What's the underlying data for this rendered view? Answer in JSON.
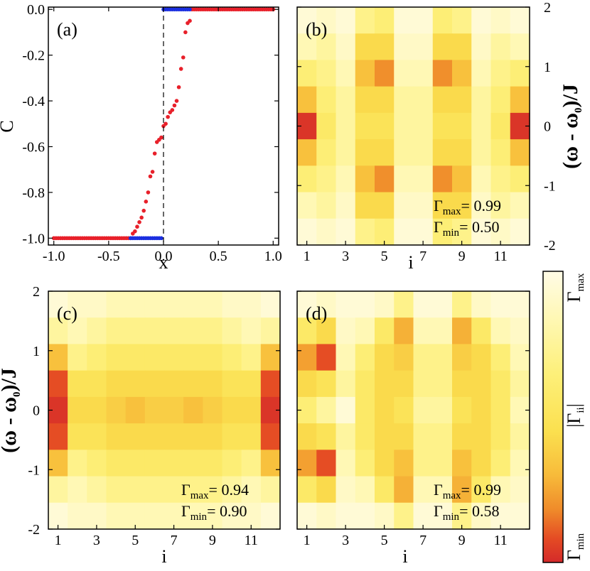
{
  "chart_data": [
    {
      "panel": "(a)",
      "type": "scatter",
      "xlabel": "x",
      "ylabel": "C",
      "xlim": [
        -1.05,
        1.05
      ],
      "ylim": [
        -1.03,
        0.01
      ],
      "x_ticks": [
        -1.0,
        -0.5,
        0.0,
        0.5,
        1.0
      ],
      "x_tick_labels": [
        "-1.0",
        "-0.5",
        "0.0",
        "0.5",
        "1.0"
      ],
      "y_ticks": [
        0.0,
        -0.2,
        -0.4,
        -0.6,
        -0.8,
        -1.0
      ],
      "y_tick_labels": [
        "0.0",
        "-0.2",
        "-0.4",
        "-0.6",
        "-0.8",
        "-1.0"
      ],
      "vline_x": 0.0,
      "series": [
        {
          "color": "#e8202a",
          "points": [
            [
              -1.0,
              -1.0
            ],
            [
              -0.98,
              -1.0
            ],
            [
              -0.96,
              -1.0
            ],
            [
              -0.94,
              -1.0
            ],
            [
              -0.92,
              -1.0
            ],
            [
              -0.9,
              -1.0
            ],
            [
              -0.88,
              -1.0
            ],
            [
              -0.86,
              -1.0
            ],
            [
              -0.84,
              -1.0
            ],
            [
              -0.82,
              -1.0
            ],
            [
              -0.8,
              -1.0
            ],
            [
              -0.78,
              -1.0
            ],
            [
              -0.76,
              -1.0
            ],
            [
              -0.74,
              -1.0
            ],
            [
              -0.72,
              -1.0
            ],
            [
              -0.7,
              -1.0
            ],
            [
              -0.68,
              -1.0
            ],
            [
              -0.66,
              -1.0
            ],
            [
              -0.64,
              -1.0
            ],
            [
              -0.62,
              -1.0
            ],
            [
              -0.6,
              -1.0
            ],
            [
              -0.58,
              -1.0
            ],
            [
              -0.56,
              -1.0
            ],
            [
              -0.54,
              -1.0
            ],
            [
              -0.52,
              -1.0
            ],
            [
              -0.5,
              -1.0
            ],
            [
              -0.48,
              -1.0
            ],
            [
              -0.46,
              -1.0
            ],
            [
              -0.44,
              -1.0
            ],
            [
              -0.42,
              -1.0
            ],
            [
              -0.4,
              -1.0
            ],
            [
              -0.38,
              -1.0
            ],
            [
              -0.36,
              -1.0
            ],
            [
              -0.34,
              -1.0
            ],
            [
              -0.32,
              -1.0
            ],
            [
              -0.3,
              -1.0
            ],
            [
              -0.28,
              -0.98
            ],
            [
              -0.26,
              -0.97
            ],
            [
              -0.24,
              -0.95
            ],
            [
              -0.22,
              -0.93
            ],
            [
              -0.2,
              -0.91
            ],
            [
              -0.18,
              -0.88
            ],
            [
              -0.16,
              -0.84
            ],
            [
              -0.14,
              -0.8
            ],
            [
              -0.12,
              -0.73
            ],
            [
              -0.1,
              -0.71
            ],
            [
              -0.08,
              -0.63
            ],
            [
              -0.06,
              -0.58
            ],
            [
              -0.04,
              -0.57
            ],
            [
              -0.02,
              -0.56
            ],
            [
              0.0,
              -0.51
            ],
            [
              0.02,
              -0.5
            ],
            [
              0.04,
              -0.47
            ],
            [
              0.06,
              -0.45
            ],
            [
              0.08,
              -0.44
            ],
            [
              0.1,
              -0.42
            ],
            [
              0.12,
              -0.4
            ],
            [
              0.14,
              -0.34
            ],
            [
              0.16,
              -0.26
            ],
            [
              0.18,
              -0.21
            ],
            [
              0.2,
              -0.1
            ],
            [
              0.22,
              -0.06
            ],
            [
              0.24,
              -0.05
            ],
            [
              0.26,
              0.0
            ],
            [
              0.28,
              0.0
            ],
            [
              0.3,
              0.0
            ],
            [
              0.32,
              0.0
            ],
            [
              0.34,
              0.0
            ],
            [
              0.36,
              0.0
            ],
            [
              0.38,
              0.0
            ],
            [
              0.4,
              0.0
            ],
            [
              0.42,
              0.0
            ],
            [
              0.44,
              0.0
            ],
            [
              0.46,
              0.0
            ],
            [
              0.48,
              0.0
            ],
            [
              0.5,
              0.0
            ],
            [
              0.52,
              0.0
            ],
            [
              0.54,
              0.0
            ],
            [
              0.56,
              0.0
            ],
            [
              0.58,
              0.0
            ],
            [
              0.6,
              0.0
            ],
            [
              0.62,
              0.0
            ],
            [
              0.64,
              0.0
            ],
            [
              0.66,
              0.0
            ],
            [
              0.68,
              0.0
            ],
            [
              0.7,
              0.0
            ],
            [
              0.72,
              0.0
            ],
            [
              0.74,
              0.0
            ],
            [
              0.76,
              0.0
            ],
            [
              0.78,
              0.0
            ],
            [
              0.8,
              0.0
            ],
            [
              0.82,
              0.0
            ],
            [
              0.84,
              0.0
            ],
            [
              0.86,
              0.0
            ],
            [
              0.88,
              0.0
            ],
            [
              0.9,
              0.0
            ],
            [
              0.92,
              0.0
            ],
            [
              0.94,
              0.0
            ],
            [
              0.96,
              0.0
            ],
            [
              0.98,
              0.0
            ],
            [
              1.0,
              0.0
            ]
          ]
        },
        {
          "color": "#1b2fe0",
          "points": [
            [
              -0.3,
              -1.0
            ],
            [
              -0.28,
              -1.0
            ],
            [
              -0.26,
              -1.0
            ],
            [
              -0.24,
              -1.0
            ],
            [
              -0.22,
              -1.0
            ],
            [
              -0.2,
              -1.0
            ],
            [
              -0.18,
              -1.0
            ],
            [
              -0.16,
              -1.0
            ],
            [
              -0.14,
              -1.0
            ],
            [
              -0.12,
              -1.0
            ],
            [
              -0.1,
              -1.0
            ],
            [
              -0.08,
              -1.0
            ],
            [
              -0.06,
              -1.0
            ],
            [
              -0.04,
              -1.0
            ],
            [
              -0.02,
              -1.0
            ],
            [
              0.0,
              0.0
            ],
            [
              0.02,
              0.0
            ],
            [
              0.04,
              0.0
            ],
            [
              0.06,
              0.0
            ],
            [
              0.08,
              0.0
            ],
            [
              0.1,
              0.0
            ],
            [
              0.12,
              0.0
            ],
            [
              0.14,
              0.0
            ],
            [
              0.16,
              0.0
            ],
            [
              0.18,
              0.0
            ],
            [
              0.2,
              0.0
            ],
            [
              0.22,
              0.0
            ],
            [
              0.24,
              0.0
            ]
          ]
        }
      ]
    },
    {
      "panel": "(b)",
      "type": "heatmap",
      "xlabel": "i",
      "ylabel": "(ω - ω0)/J",
      "x_tick_labels": [
        "1",
        "3",
        "5",
        "7",
        "9",
        "11"
      ],
      "y_tick_labels": [
        "2",
        "1",
        "0",
        "-1",
        "-2"
      ],
      "annotation": {
        "gmax_value": "= 0.99",
        "gmin_value": "= 0.50"
      },
      "columns": 12,
      "rows": 9,
      "z": [
        [
          0.05,
          0.1,
          0.05,
          0.25,
          0.3,
          0.05,
          0.05,
          0.3,
          0.25,
          0.05,
          0.1,
          0.05
        ],
        [
          0.15,
          0.2,
          0.1,
          0.45,
          0.45,
          0.1,
          0.1,
          0.45,
          0.45,
          0.1,
          0.2,
          0.15
        ],
        [
          0.3,
          0.25,
          0.15,
          0.55,
          0.7,
          0.15,
          0.15,
          0.7,
          0.55,
          0.15,
          0.25,
          0.3
        ],
        [
          0.55,
          0.3,
          0.2,
          0.45,
          0.45,
          0.2,
          0.2,
          0.45,
          0.45,
          0.2,
          0.3,
          0.55
        ],
        [
          0.95,
          0.35,
          0.2,
          0.4,
          0.4,
          0.2,
          0.2,
          0.4,
          0.4,
          0.2,
          0.35,
          0.95
        ],
        [
          0.55,
          0.3,
          0.2,
          0.45,
          0.45,
          0.2,
          0.2,
          0.45,
          0.45,
          0.2,
          0.3,
          0.55
        ],
        [
          0.3,
          0.25,
          0.15,
          0.55,
          0.7,
          0.15,
          0.15,
          0.7,
          0.55,
          0.15,
          0.25,
          0.3
        ],
        [
          0.15,
          0.2,
          0.1,
          0.45,
          0.45,
          0.1,
          0.1,
          0.45,
          0.45,
          0.1,
          0.2,
          0.15
        ],
        [
          0.05,
          0.1,
          0.05,
          0.25,
          0.3,
          0.05,
          0.05,
          0.3,
          0.25,
          0.05,
          0.1,
          0.05
        ]
      ]
    },
    {
      "panel": "(c)",
      "type": "heatmap",
      "xlabel": "i",
      "ylabel": "(ω - ω0)/J",
      "x_tick_labels": [
        "1",
        "3",
        "5",
        "7",
        "9",
        "11"
      ],
      "y_tick_labels": [
        "2",
        "1",
        "0",
        "-1",
        "-2"
      ],
      "annotation": {
        "gmax_value": "= 0.94",
        "gmin_value": "= 0.90"
      },
      "columns": 12,
      "rows": 9,
      "z": [
        [
          0.05,
          0.1,
          0.1,
          0.15,
          0.15,
          0.15,
          0.15,
          0.15,
          0.15,
          0.1,
          0.1,
          0.05
        ],
        [
          0.2,
          0.15,
          0.2,
          0.25,
          0.25,
          0.25,
          0.25,
          0.25,
          0.25,
          0.2,
          0.15,
          0.2
        ],
        [
          0.55,
          0.25,
          0.3,
          0.35,
          0.35,
          0.35,
          0.35,
          0.35,
          0.35,
          0.3,
          0.25,
          0.55
        ],
        [
          0.85,
          0.4,
          0.4,
          0.45,
          0.45,
          0.45,
          0.45,
          0.45,
          0.45,
          0.4,
          0.4,
          0.85
        ],
        [
          0.95,
          0.45,
          0.45,
          0.5,
          0.55,
          0.5,
          0.5,
          0.55,
          0.5,
          0.45,
          0.45,
          0.95
        ],
        [
          0.85,
          0.4,
          0.4,
          0.45,
          0.45,
          0.45,
          0.45,
          0.45,
          0.45,
          0.4,
          0.4,
          0.85
        ],
        [
          0.55,
          0.25,
          0.3,
          0.35,
          0.35,
          0.35,
          0.35,
          0.35,
          0.35,
          0.3,
          0.25,
          0.55
        ],
        [
          0.2,
          0.15,
          0.2,
          0.25,
          0.25,
          0.25,
          0.25,
          0.25,
          0.25,
          0.2,
          0.15,
          0.2
        ],
        [
          0.05,
          0.1,
          0.1,
          0.15,
          0.15,
          0.15,
          0.15,
          0.15,
          0.15,
          0.1,
          0.1,
          0.05
        ]
      ]
    },
    {
      "panel": "(d)",
      "type": "heatmap",
      "xlabel": "i",
      "ylabel": "",
      "x_tick_labels": [
        "1",
        "3",
        "5",
        "7",
        "9",
        "11"
      ],
      "y_tick_labels": [],
      "annotation": {
        "gmax_value": "= 0.99",
        "gmin_value": "= 0.58"
      },
      "columns": 12,
      "rows": 9,
      "z": [
        [
          0.05,
          0.1,
          0.05,
          0.05,
          0.1,
          0.25,
          0.05,
          0.05,
          0.25,
          0.1,
          0.05,
          0.05
        ],
        [
          0.35,
          0.45,
          0.1,
          0.15,
          0.35,
          0.6,
          0.15,
          0.15,
          0.6,
          0.35,
          0.15,
          0.1
        ],
        [
          0.65,
          0.85,
          0.15,
          0.3,
          0.45,
          0.5,
          0.25,
          0.25,
          0.5,
          0.45,
          0.3,
          0.15
        ],
        [
          0.45,
          0.4,
          0.2,
          0.35,
          0.45,
          0.45,
          0.25,
          0.25,
          0.45,
          0.45,
          0.35,
          0.2
        ],
        [
          0.3,
          0.2,
          0.05,
          0.35,
          0.45,
          0.4,
          0.2,
          0.2,
          0.4,
          0.45,
          0.35,
          0.15
        ],
        [
          0.45,
          0.4,
          0.2,
          0.35,
          0.45,
          0.45,
          0.25,
          0.25,
          0.45,
          0.45,
          0.35,
          0.2
        ],
        [
          0.65,
          0.85,
          0.15,
          0.3,
          0.45,
          0.55,
          0.25,
          0.25,
          0.55,
          0.45,
          0.3,
          0.15
        ],
        [
          0.35,
          0.45,
          0.1,
          0.15,
          0.35,
          0.6,
          0.15,
          0.15,
          0.6,
          0.35,
          0.15,
          0.1
        ],
        [
          0.05,
          0.1,
          0.05,
          0.05,
          0.1,
          0.25,
          0.05,
          0.05,
          0.25,
          0.1,
          0.05,
          0.05
        ]
      ]
    }
  ],
  "colorbar": {
    "label": "|Γii|",
    "top_label": "Γmax",
    "bottom_label": "Γmin",
    "stops": [
      "#fffbe6",
      "#fff8b8",
      "#fdf07a",
      "#fbe04f",
      "#f7bb3a",
      "#ef8a2a",
      "#e44a24",
      "#d42a2a"
    ]
  }
}
